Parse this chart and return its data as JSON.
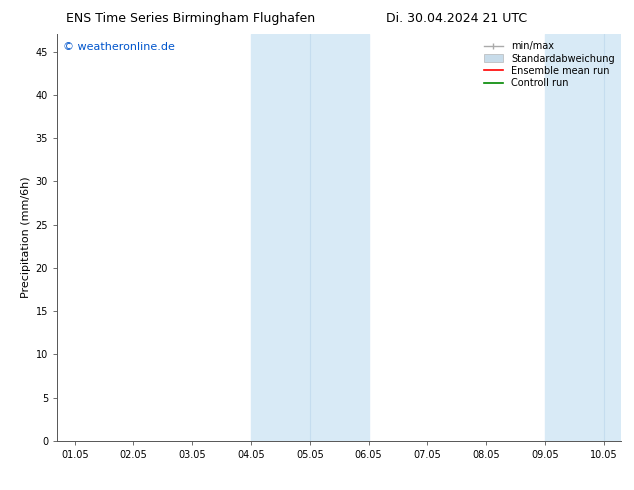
{
  "title_left": "ENS Time Series Birmingham Flughafen",
  "title_right": "Di. 30.04.2024 21 UTC",
  "ylabel": "Precipitation (mm/6h)",
  "xlabel_ticks": [
    "01.05",
    "02.05",
    "03.05",
    "04.05",
    "05.05",
    "06.05",
    "07.05",
    "08.05",
    "09.05",
    "10.05"
  ],
  "xlim": [
    0,
    9
  ],
  "ylim": [
    0,
    47
  ],
  "yticks": [
    0,
    5,
    10,
    15,
    20,
    25,
    30,
    35,
    40,
    45
  ],
  "background_color": "#ffffff",
  "plot_bg_color": "#ffffff",
  "shaded_band1": [
    3.0,
    5.0
  ],
  "shaded_band2": [
    8.0,
    10.0
  ],
  "inner_line1": 4.0,
  "inner_line2": 9.0,
  "shade_color": "#d8eaf6",
  "inner_line_color": "#c5ddef",
  "watermark_text": "© weatheronline.de",
  "watermark_color": "#0055cc",
  "legend_labels": [
    "min/max",
    "Standardabweichung",
    "Ensemble mean run",
    "Controll run"
  ],
  "legend_line_colors": [
    "#aaaaaa",
    "#c8dcea",
    "#ff0000",
    "#008800"
  ],
  "title_fontsize": 9,
  "tick_fontsize": 7,
  "ylabel_fontsize": 8,
  "watermark_fontsize": 8,
  "legend_fontsize": 7
}
